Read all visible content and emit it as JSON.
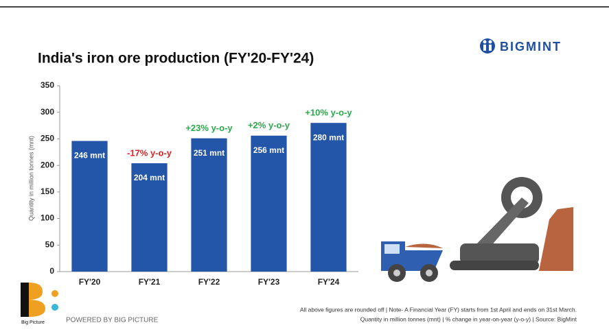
{
  "chart_data": {
    "type": "bar",
    "title": "India's iron ore production (FY'20-FY'24)",
    "y_label": "Quantity in million tonnes (mnt)",
    "categories": [
      "FY'20",
      "FY'21",
      "FY'22",
      "FY'23",
      "FY'24"
    ],
    "values": [
      246,
      204,
      251,
      256,
      280
    ],
    "value_labels": [
      "246 mnt",
      "204 mnt",
      "251 mnt",
      "256 mnt",
      "280 mnt"
    ],
    "change_labels": [
      null,
      "-17% y-o-y",
      "+23% y-o-y",
      "+2% y-o-y",
      "+10% y-o-y"
    ],
    "change_colors": [
      null,
      "#e02020",
      "#2aa84a",
      "#2aa84a",
      "#2aa84a"
    ],
    "color": "#2356a8",
    "ylim": [
      0,
      350
    ],
    "yticks": [
      0,
      50,
      100,
      150,
      200,
      250,
      300,
      350
    ],
    "grid": false,
    "brand": "BIGMINT",
    "footer_brand": "Big Picture",
    "powered_by": "POWERED BY BIG PICTURE",
    "notes": [
      "All above figures are rounded off | Note- A Financial Year (FY) starts from 1st April and ends on 31st March.",
      "Quantity in million tonnes (mnt) | % change in year-on-year (y-o-y) | Source: BigMint"
    ]
  }
}
